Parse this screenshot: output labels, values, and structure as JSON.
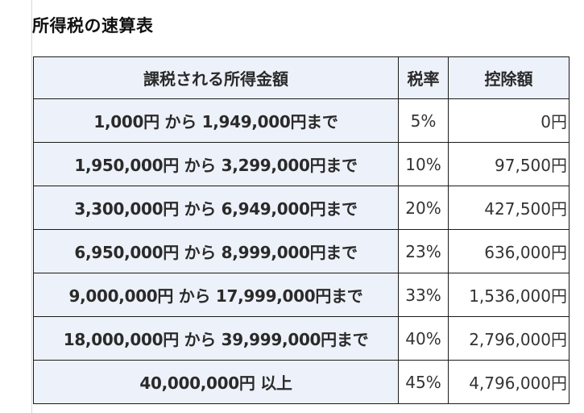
{
  "title": "所得税の速算表",
  "table": {
    "headers": [
      "課税される所得金額",
      "税率",
      "控除額"
    ],
    "rows": [
      {
        "range": "1,000円 から 1,949,000円まで",
        "rate": "5%",
        "deduction": "0円"
      },
      {
        "range": "1,950,000円 から 3,299,000円まで",
        "rate": "10%",
        "deduction": "97,500円"
      },
      {
        "range": "3,300,000円 から 6,949,000円まで",
        "rate": "20%",
        "deduction": "427,500円"
      },
      {
        "range": "6,950,000円 から 8,999,000円まで",
        "rate": "23%",
        "deduction": "636,000円"
      },
      {
        "range": "9,000,000円 から 17,999,000円まで",
        "rate": "33%",
        "deduction": "1,536,000円"
      },
      {
        "range": "18,000,000円 から 39,999,000円まで",
        "rate": "40%",
        "deduction": "2,796,000円"
      },
      {
        "range": "40,000,000円 以上",
        "rate": "45%",
        "deduction": "4,796,000円"
      }
    ]
  },
  "colors": {
    "header_bg": "#edf1f9",
    "border": "#1a1a1a"
  }
}
